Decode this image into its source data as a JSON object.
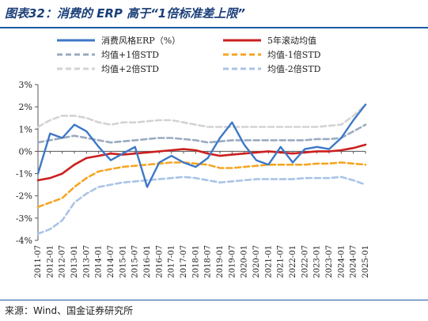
{
  "header": {
    "title": "图表32：消费的 ERP 高于“1倍标准差上限”"
  },
  "footer": {
    "source": "来源：Wind、国金证券研究所"
  },
  "chart_data": {
    "type": "line",
    "title": "图表32：消费的 ERP 高于“1倍标准差上限”",
    "xlabel": "",
    "ylabel": "",
    "ylim": [
      -4,
      3
    ],
    "yticks": [
      "3%",
      "2%",
      "1%",
      "0%",
      "-1%",
      "-2%",
      "-3%",
      "-4%"
    ],
    "x_tick_labels": [
      "2011-07",
      "2012-01",
      "2012-07",
      "2013-01",
      "2013-07",
      "2014-01",
      "2014-07",
      "2015-01",
      "2015-07",
      "2016-01",
      "2016-07",
      "2017-01",
      "2017-07",
      "2018-01",
      "2018-07",
      "2019-01",
      "2019-07",
      "2020-01",
      "2020-07",
      "2021-01",
      "2021-07",
      "2022-01",
      "2022-07",
      "2023-01",
      "2023-07",
      "2024-01",
      "2024-07",
      "2025-01"
    ],
    "grid": false,
    "legend_position": "top",
    "series": [
      {
        "name": "消费风格ERP（%）",
        "color": "#3d78c6",
        "style": "solid",
        "width": 2.4,
        "x": [
          0,
          1,
          2,
          3,
          4,
          5,
          6,
          7,
          8,
          9,
          10,
          11,
          12,
          13,
          14,
          15,
          16,
          17,
          18,
          19,
          20,
          21,
          22,
          23,
          24,
          25,
          26,
          27
        ],
        "values": [
          -1.0,
          0.8,
          0.6,
          1.2,
          0.9,
          0.2,
          -0.4,
          -0.1,
          0.2,
          -1.6,
          -0.5,
          -0.2,
          -0.5,
          -0.7,
          -0.3,
          0.6,
          1.3,
          0.3,
          -0.4,
          -0.6,
          0.2,
          -0.5,
          0.1,
          0.2,
          0.1,
          0.6,
          1.4,
          2.1
        ]
      },
      {
        "name": "5年滚动均值",
        "color": "#cc1f1f",
        "style": "solid",
        "width": 2.6,
        "x": [
          0,
          1,
          2,
          3,
          4,
          5,
          6,
          7,
          8,
          9,
          10,
          11,
          12,
          13,
          14,
          15,
          16,
          17,
          18,
          19,
          20,
          21,
          22,
          23,
          24,
          25,
          26,
          27
        ],
        "values": [
          -1.3,
          -1.2,
          -1.0,
          -0.6,
          -0.3,
          -0.2,
          -0.1,
          -0.15,
          -0.1,
          -0.05,
          0.0,
          0.05,
          0.1,
          0.05,
          -0.1,
          -0.2,
          -0.15,
          -0.1,
          -0.05,
          0.0,
          -0.05,
          -0.1,
          -0.05,
          0.0,
          0.0,
          0.05,
          0.15,
          0.3
        ]
      },
      {
        "name": "均值+1倍STD",
        "color": "#9aabc0",
        "style": "dash",
        "width": 2.6,
        "x": [
          0,
          1,
          2,
          3,
          4,
          5,
          6,
          7,
          8,
          9,
          10,
          11,
          12,
          13,
          14,
          15,
          16,
          17,
          18,
          19,
          20,
          21,
          22,
          23,
          24,
          25,
          26,
          27
        ],
        "values": [
          0.4,
          0.5,
          0.6,
          0.7,
          0.6,
          0.5,
          0.4,
          0.45,
          0.5,
          0.55,
          0.6,
          0.6,
          0.55,
          0.5,
          0.4,
          0.45,
          0.5,
          0.5,
          0.5,
          0.5,
          0.5,
          0.5,
          0.5,
          0.55,
          0.55,
          0.6,
          0.9,
          1.2
        ]
      },
      {
        "name": "均值-1倍STD",
        "color": "#f5a623",
        "style": "dash",
        "width": 2.6,
        "x": [
          0,
          1,
          2,
          3,
          4,
          5,
          6,
          7,
          8,
          9,
          10,
          11,
          12,
          13,
          14,
          15,
          16,
          17,
          18,
          19,
          20,
          21,
          22,
          23,
          24,
          25,
          26,
          27
        ],
        "values": [
          -2.5,
          -2.3,
          -2.1,
          -1.6,
          -1.2,
          -0.9,
          -0.8,
          -0.7,
          -0.65,
          -0.6,
          -0.55,
          -0.5,
          -0.5,
          -0.55,
          -0.6,
          -0.75,
          -0.75,
          -0.7,
          -0.65,
          -0.6,
          -0.6,
          -0.6,
          -0.6,
          -0.55,
          -0.55,
          -0.5,
          -0.55,
          -0.6
        ]
      },
      {
        "name": "均值+2倍STD",
        "color": "#d3d3d3",
        "style": "dash",
        "width": 2.6,
        "x": [
          0,
          1,
          2,
          3,
          4,
          5,
          6,
          7,
          8,
          9,
          10,
          11,
          12,
          13,
          14,
          15,
          16,
          17,
          18,
          19,
          20,
          21,
          22,
          23,
          24,
          25,
          26,
          27
        ],
        "values": [
          1.1,
          1.4,
          1.6,
          1.6,
          1.5,
          1.3,
          1.2,
          1.3,
          1.3,
          1.35,
          1.4,
          1.4,
          1.3,
          1.2,
          1.1,
          1.1,
          1.1,
          1.1,
          1.1,
          1.1,
          1.1,
          1.1,
          1.1,
          1.1,
          1.15,
          1.2,
          1.6,
          2.1
        ]
      },
      {
        "name": "均值-2倍STD",
        "color": "#a9c4e6",
        "style": "dash",
        "width": 2.6,
        "x": [
          0,
          1,
          2,
          3,
          4,
          5,
          6,
          7,
          8,
          9,
          10,
          11,
          12,
          13,
          14,
          15,
          16,
          17,
          18,
          19,
          20,
          21,
          22,
          23,
          24,
          25,
          26,
          27
        ],
        "values": [
          -3.7,
          -3.5,
          -3.1,
          -2.3,
          -1.9,
          -1.6,
          -1.5,
          -1.4,
          -1.35,
          -1.3,
          -1.25,
          -1.2,
          -1.15,
          -1.2,
          -1.3,
          -1.4,
          -1.35,
          -1.3,
          -1.25,
          -1.25,
          -1.25,
          -1.25,
          -1.2,
          -1.2,
          -1.2,
          -1.15,
          -1.3,
          -1.5
        ]
      }
    ]
  }
}
